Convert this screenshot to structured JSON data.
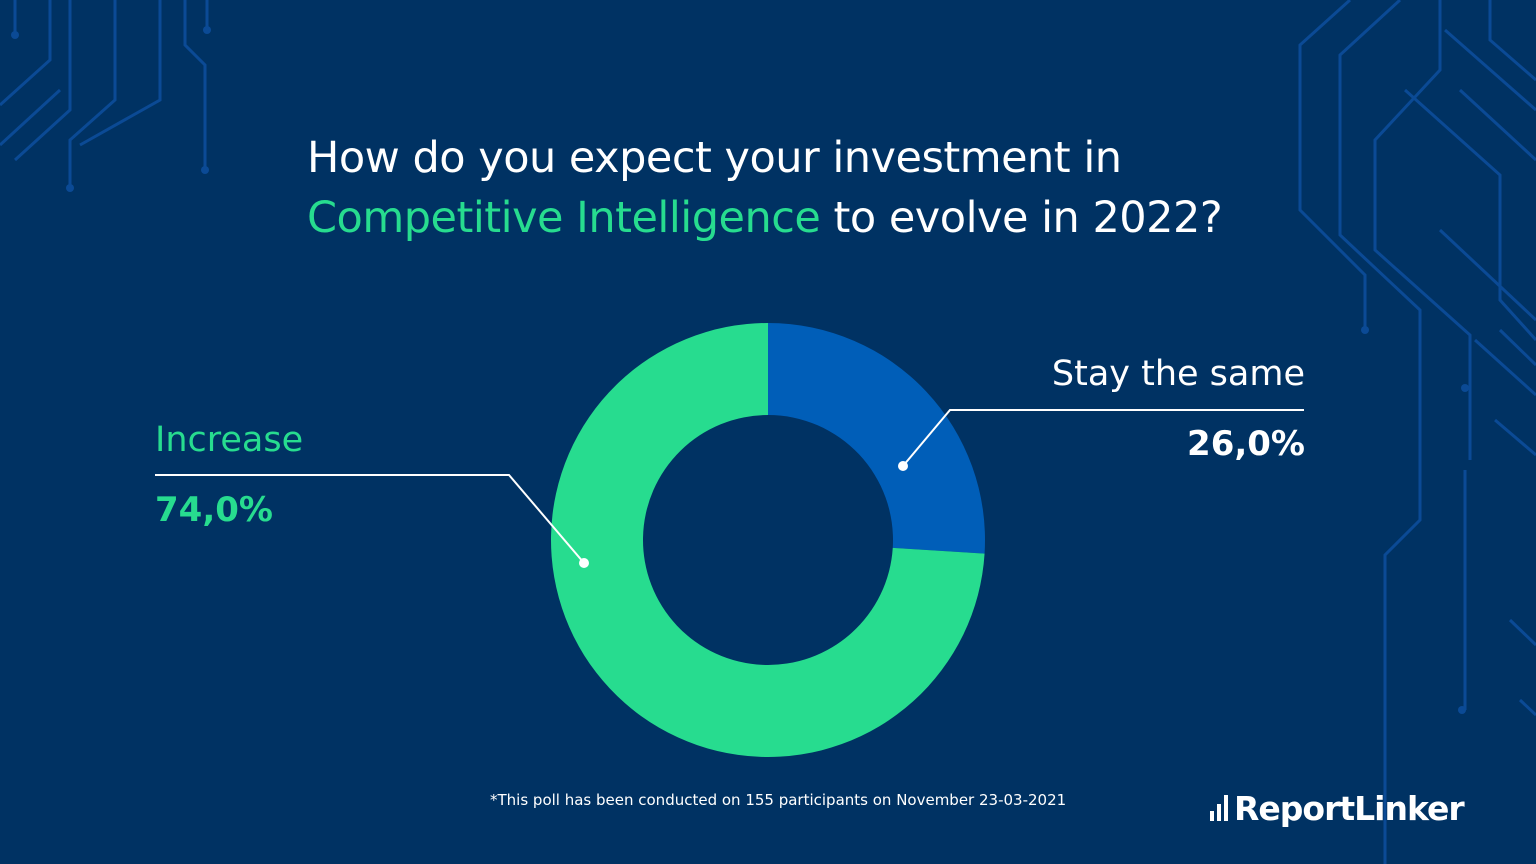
{
  "title": {
    "line1": "How do you expect your investment in",
    "highlight": "Competitive Intelligence",
    "line2_rest": "to evolve in 2022?"
  },
  "chart_data": {
    "type": "pie",
    "series": [
      {
        "name": "Stay the same",
        "value": 26.0,
        "label": "26,0%",
        "color": "#005eb8"
      },
      {
        "name": "Increase",
        "value": 74.0,
        "label": "74,0%",
        "color": "#27dc8f"
      }
    ],
    "donut": true,
    "start": "top, clockwise"
  },
  "footnote": "*This poll has been conducted on 155 participants on November 23-03-2021",
  "brand": "ReportLinker",
  "colors": {
    "background": "#003263",
    "accent": "#27dc8f",
    "secondary": "#005eb8",
    "circuit": "#0b4a95",
    "text": "#ffffff"
  }
}
